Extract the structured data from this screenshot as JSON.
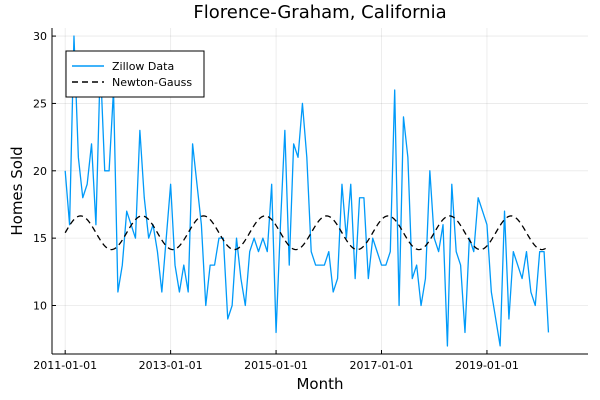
{
  "chart_data": {
    "type": "line",
    "title": "Florence-Graham, California",
    "xlabel": "Month",
    "ylabel": "Homes Sold",
    "x_start": "2011-01",
    "x_end": "2020-09",
    "xlim": [
      "2010-10",
      "2020-12"
    ],
    "ylim": [
      6.4,
      30.6
    ],
    "x_ticks": [
      "2011-01-01",
      "2013-01-01",
      "2015-01-01",
      "2017-01-01",
      "2019-01-01"
    ],
    "y_ticks": [
      10,
      15,
      20,
      25,
      30
    ],
    "grid": true,
    "legend_position": "top-left",
    "series": [
      {
        "name": "Zillow Data",
        "color": "#009AF9",
        "style": "solid",
        "values": [
          20,
          16,
          30,
          21,
          18,
          19,
          22,
          16,
          28,
          20,
          20,
          26,
          11,
          13,
          17,
          16,
          15,
          23,
          18,
          15,
          16,
          14,
          11,
          15,
          19,
          13,
          11,
          13,
          11,
          22,
          19,
          16,
          10,
          13,
          13,
          15,
          15,
          9,
          10,
          15,
          12,
          10,
          14,
          15,
          14,
          15,
          14,
          19,
          8,
          16,
          23,
          13,
          22,
          21,
          25,
          21,
          14,
          13,
          13,
          13,
          14,
          11,
          12,
          19,
          15,
          19,
          12,
          18,
          18,
          12,
          15,
          14,
          13,
          13,
          14,
          26,
          10,
          24,
          21,
          12,
          13,
          10,
          12,
          20,
          15,
          14,
          16,
          7,
          19,
          14,
          13,
          8,
          15,
          14,
          18,
          17,
          16,
          11,
          9,
          7,
          17,
          9,
          14,
          13,
          12,
          14,
          11,
          10,
          14,
          14,
          8
        ]
      },
      {
        "name": "Newton-Gauss",
        "color": "#000000",
        "style": "dashed",
        "model": {
          "mean": 15.4,
          "amplitude": 1.25,
          "period_months": 14,
          "peak_month_offset": 3.5
        }
      }
    ]
  }
}
